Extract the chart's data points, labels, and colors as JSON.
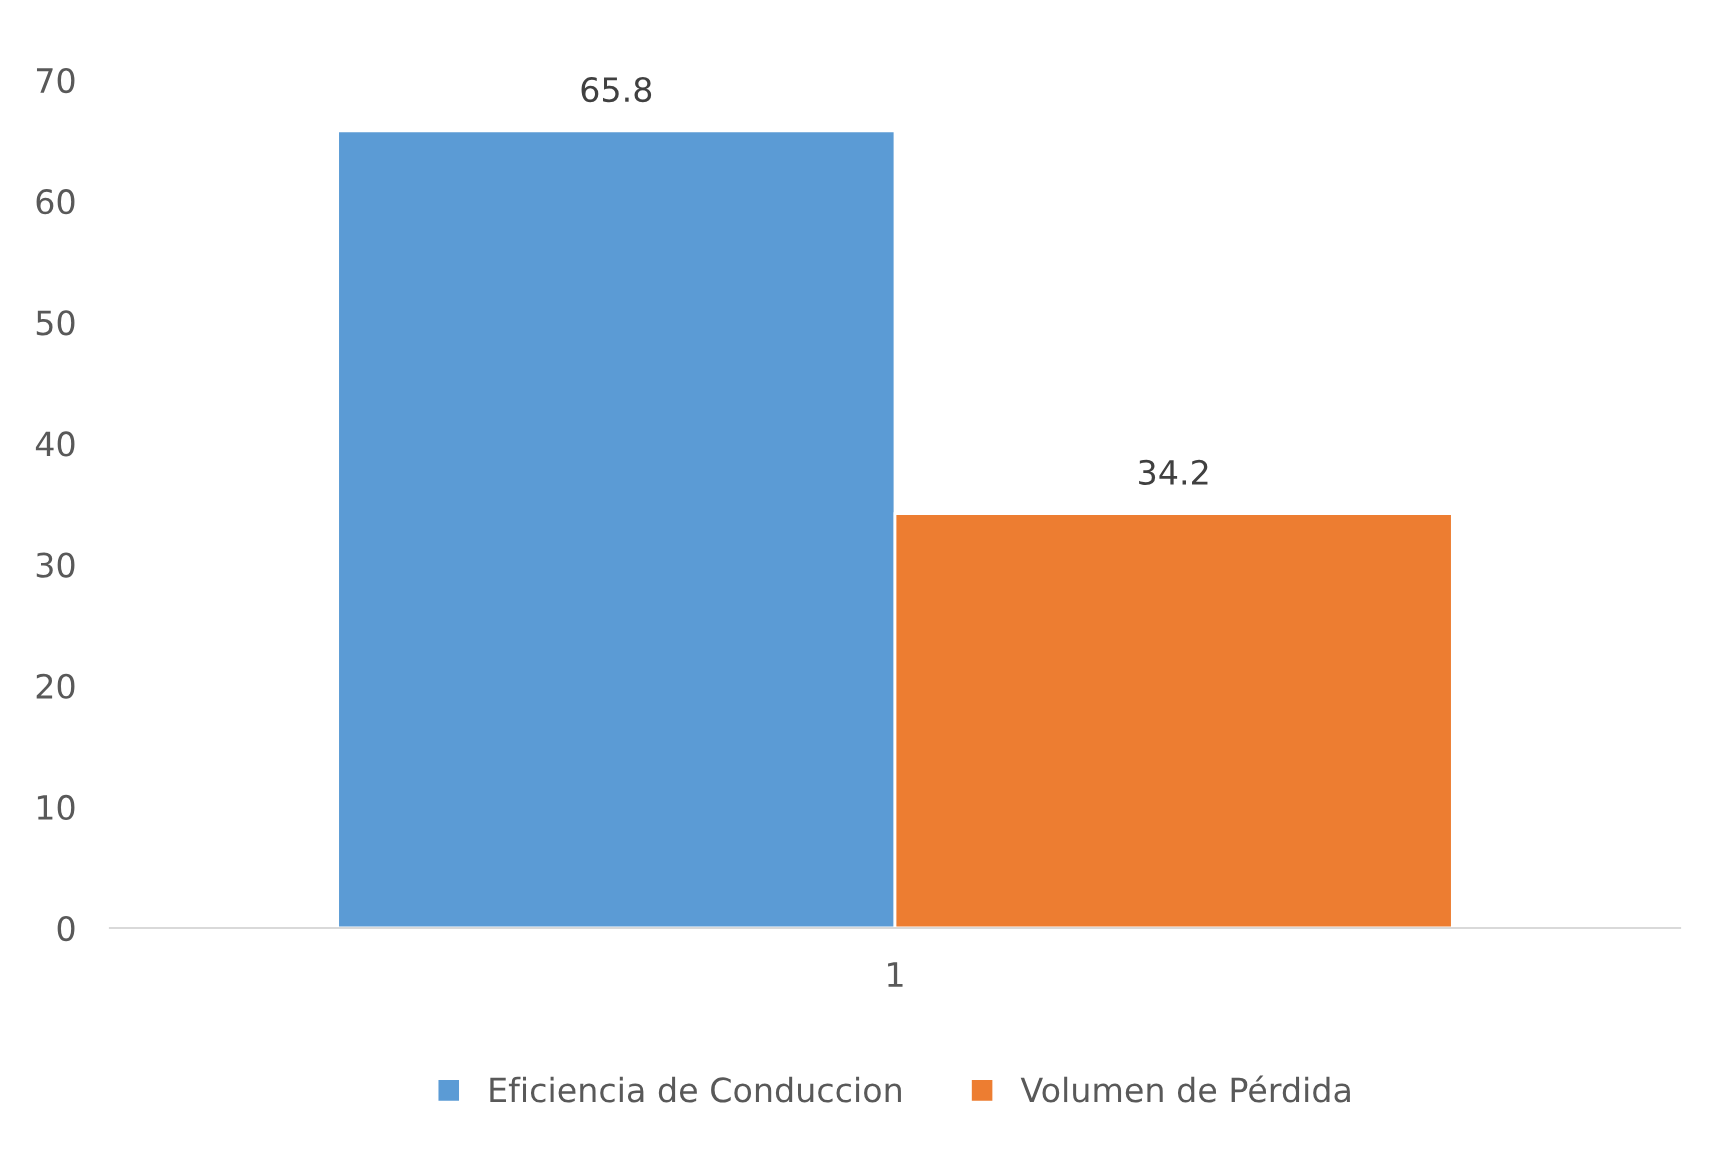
{
  "chart_data": {
    "type": "bar",
    "categories": [
      "1"
    ],
    "series": [
      {
        "name": "Eficiencia de Conduccion",
        "color": "#5b9bd5",
        "values": [
          65.8
        ]
      },
      {
        "name": "Volumen de Pérdida",
        "color": "#ed7d31",
        "values": [
          34.2
        ]
      }
    ],
    "ylim": [
      0,
      70
    ],
    "yticks": [
      0,
      10,
      20,
      30,
      40,
      50,
      60,
      70
    ],
    "grid": false,
    "legend": "bottom",
    "data_labels": true
  }
}
